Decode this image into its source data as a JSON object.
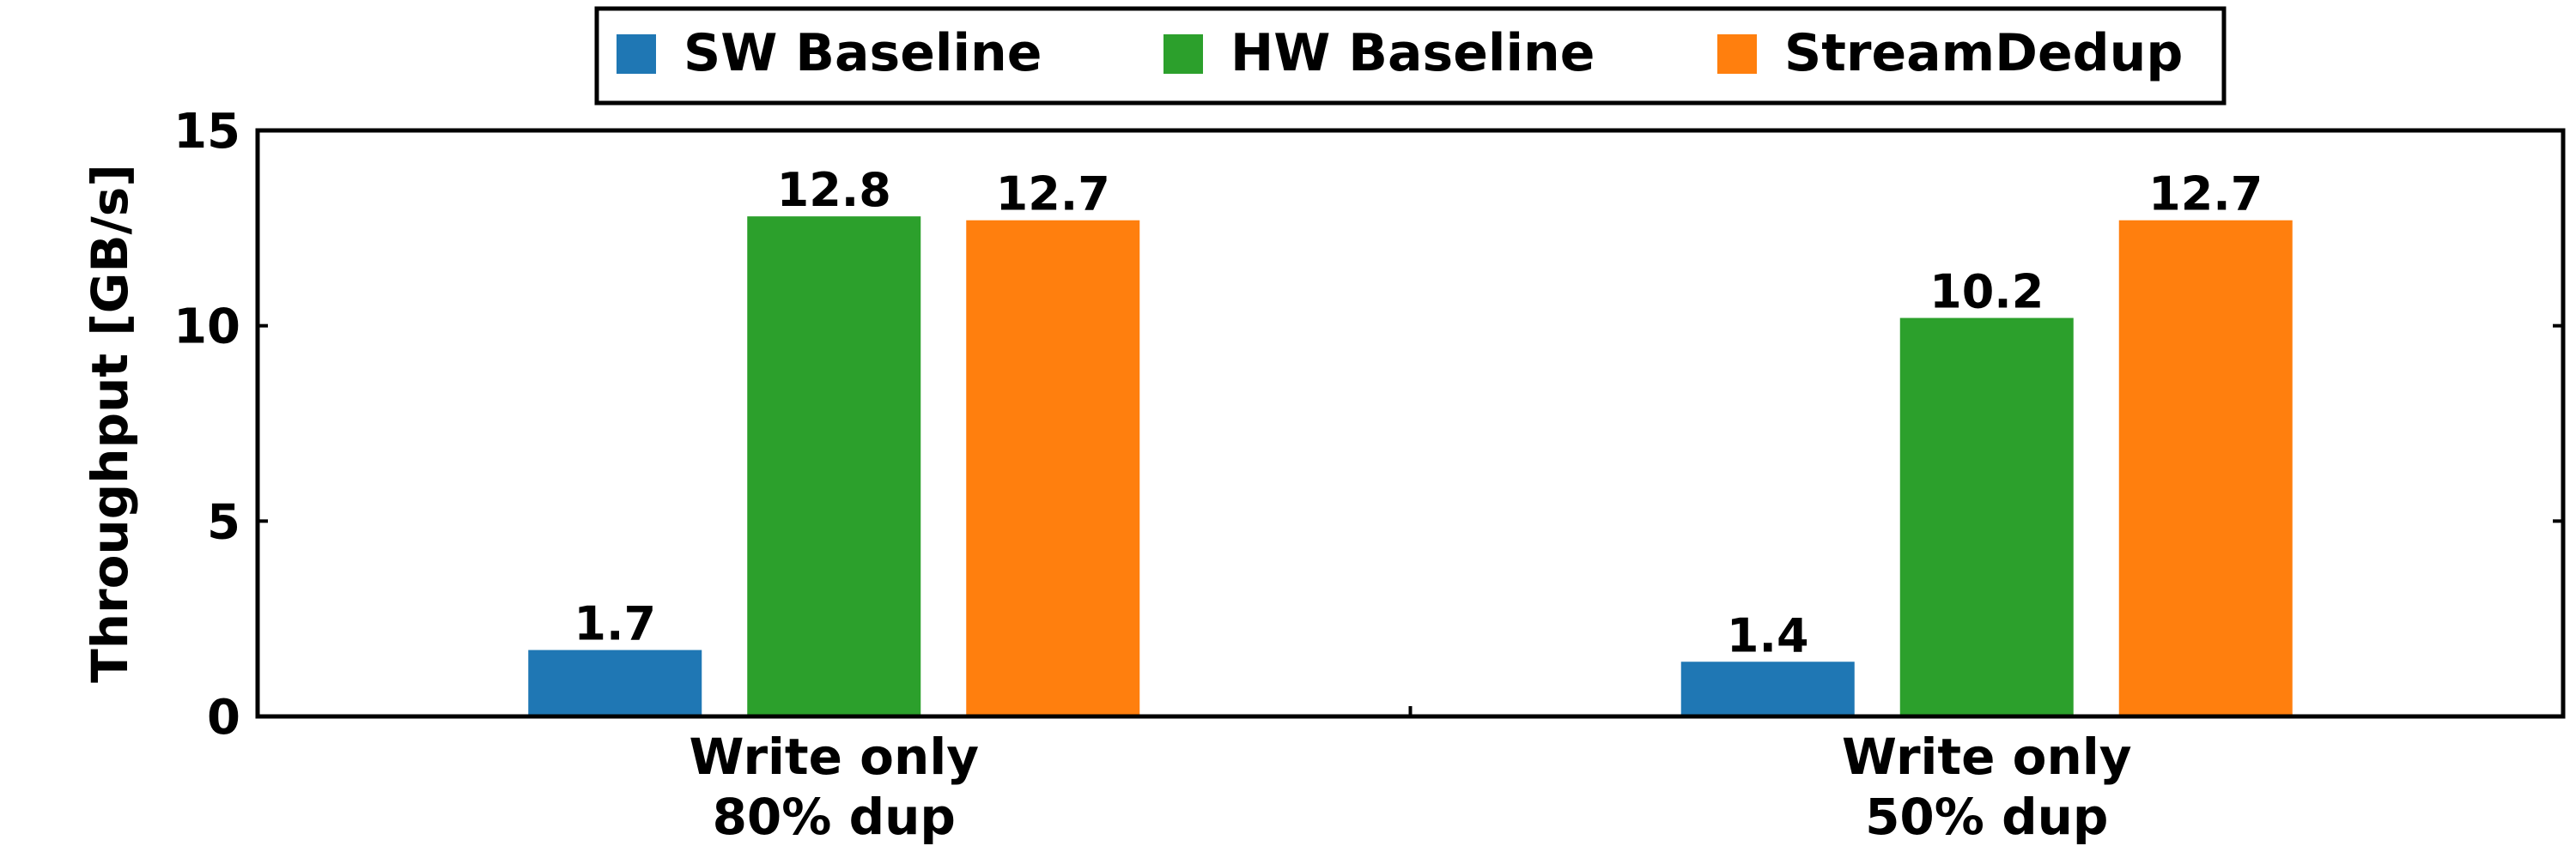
{
  "chart_data": {
    "type": "bar",
    "title": "",
    "categories": [
      [
        "Write only",
        "80% dup"
      ],
      [
        "Write only",
        "50% dup"
      ]
    ],
    "series": [
      {
        "name": "SW Baseline",
        "color": "#1f77b4",
        "values": [
          1.7,
          1.4
        ]
      },
      {
        "name": "HW Baseline",
        "color": "#2ca02c",
        "values": [
          12.8,
          10.2
        ]
      },
      {
        "name": "StreamDedup",
        "color": "#ff7f0e",
        "values": [
          12.7,
          12.7
        ]
      }
    ],
    "data_labels": [
      [
        "1.7",
        "1.4"
      ],
      [
        "12.8",
        "10.2"
      ],
      [
        "12.7",
        "12.7"
      ]
    ],
    "xlabel": "",
    "ylabel": "Throughput [GB/s]",
    "ylim": [
      0,
      15
    ],
    "yticks": [
      0,
      5,
      10,
      15
    ],
    "grid": false,
    "legend_position": "top-center"
  }
}
